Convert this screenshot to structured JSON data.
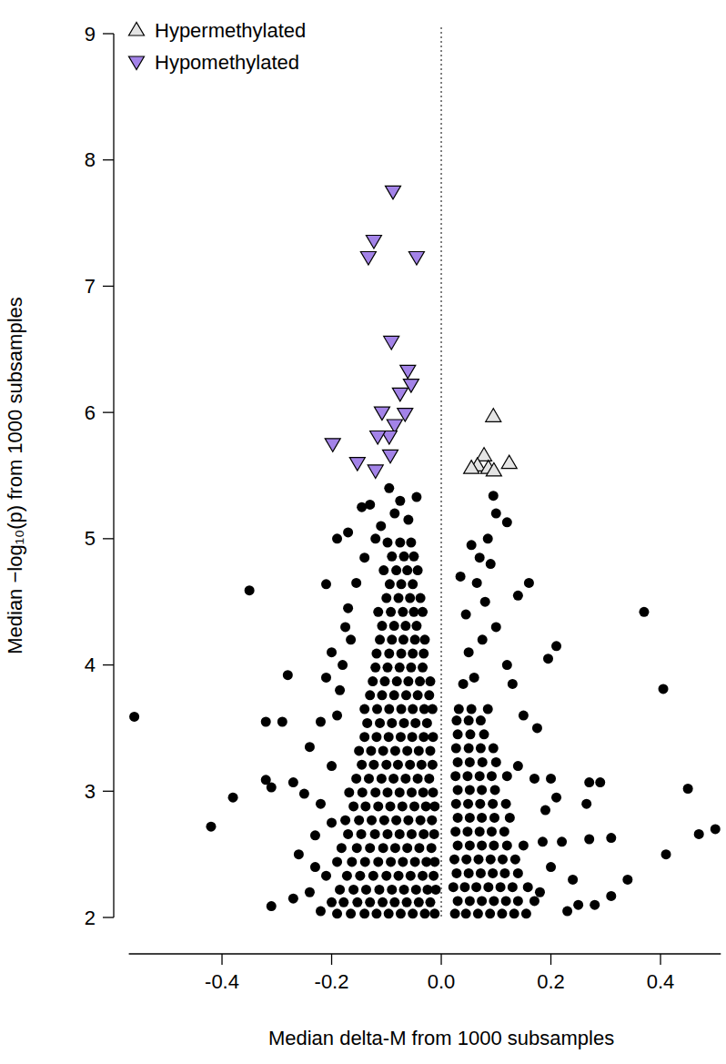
{
  "chart_data": {
    "type": "scatter",
    "x_label": "Median delta-M from 1000 subsamples",
    "y_label": "Median −log₁₀(p) from 1000 subsamples",
    "xlim": [
      -0.57,
      0.51
    ],
    "ylim": [
      2,
      9
    ],
    "xticks": [
      -0.4,
      -0.2,
      {
        "value": 0,
        "label": "0.0"
      },
      0.2,
      0.4
    ],
    "yticks": [
      2,
      3,
      4,
      5,
      6,
      7,
      8,
      9
    ],
    "vlines": [
      0
    ],
    "legend": "top-left",
    "series": [
      {
        "color": "#000000",
        "marker": "circle",
        "x": [
          -0.19,
          -0.165,
          -0.14,
          -0.118,
          -0.096,
          -0.074,
          -0.052,
          -0.03,
          -0.012,
          -0.2,
          -0.178,
          -0.153,
          -0.13,
          -0.107,
          -0.085,
          -0.063,
          -0.041,
          -0.02,
          -0.185,
          -0.16,
          -0.137,
          -0.113,
          -0.09,
          -0.068,
          -0.046,
          -0.025,
          -0.01,
          -0.21,
          -0.172,
          -0.148,
          -0.124,
          -0.1,
          -0.078,
          -0.056,
          -0.034,
          -0.014,
          -0.19,
          -0.163,
          -0.139,
          -0.115,
          -0.092,
          -0.07,
          -0.048,
          -0.027,
          -0.012,
          -0.182,
          -0.154,
          -0.13,
          -0.106,
          -0.084,
          -0.062,
          -0.04,
          -0.018,
          -0.17,
          -0.146,
          -0.121,
          -0.098,
          -0.076,
          -0.054,
          -0.032,
          -0.013,
          -0.175,
          -0.15,
          -0.127,
          -0.104,
          -0.082,
          -0.06,
          -0.038,
          -0.017,
          -0.16,
          -0.138,
          -0.115,
          -0.093,
          -0.071,
          -0.049,
          -0.028,
          -0.012,
          -0.168,
          -0.144,
          -0.12,
          -0.098,
          -0.076,
          -0.054,
          -0.033,
          -0.015,
          -0.155,
          -0.132,
          -0.109,
          -0.087,
          -0.065,
          -0.043,
          -0.022,
          -0.145,
          -0.123,
          -0.1,
          -0.079,
          -0.057,
          -0.036,
          -0.016,
          -0.15,
          -0.128,
          -0.106,
          -0.084,
          -0.062,
          -0.041,
          -0.02,
          -0.14,
          -0.118,
          -0.096,
          -0.074,
          -0.053,
          -0.032,
          -0.015,
          -0.135,
          -0.112,
          -0.09,
          -0.068,
          -0.047,
          -0.026,
          -0.14,
          -0.117,
          -0.095,
          -0.073,
          -0.052,
          -0.031,
          -0.016,
          -0.13,
          -0.108,
          -0.086,
          -0.064,
          -0.043,
          -0.022,
          -0.125,
          -0.103,
          -0.081,
          -0.06,
          -0.039,
          -0.02,
          -0.12,
          -0.098,
          -0.076,
          -0.055,
          -0.034,
          -0.118,
          -0.095,
          -0.073,
          -0.052,
          -0.032,
          -0.112,
          -0.09,
          -0.069,
          -0.048,
          -0.03,
          -0.108,
          -0.086,
          -0.065,
          -0.045,
          -0.115,
          -0.092,
          -0.07,
          -0.05,
          -0.034,
          -0.1,
          -0.078,
          -0.057,
          -0.038,
          -0.094,
          -0.073,
          -0.052,
          -0.105,
          -0.082,
          -0.062,
          -0.043,
          -0.09,
          -0.068,
          -0.05,
          -0.098,
          -0.075,
          -0.055,
          0.025,
          0.045,
          0.067,
          0.089,
          0.111,
          0.133,
          0.155,
          0.03,
          0.052,
          0.074,
          0.096,
          0.118,
          0.14,
          0.17,
          0.022,
          0.043,
          0.064,
          0.086,
          0.108,
          0.13,
          0.158,
          0.028,
          0.05,
          0.072,
          0.094,
          0.116,
          0.14,
          0.024,
          0.046,
          0.068,
          0.09,
          0.112,
          0.135,
          0.03,
          0.052,
          0.074,
          0.096,
          0.12,
          0.15,
          0.026,
          0.048,
          0.07,
          0.092,
          0.115,
          0.03,
          0.052,
          0.074,
          0.097,
          0.125,
          0.027,
          0.049,
          0.071,
          0.094,
          0.118,
          0.03,
          0.052,
          0.074,
          0.098,
          0.026,
          0.048,
          0.07,
          0.092,
          0.12,
          0.03,
          0.052,
          0.075,
          0.1,
          0.027,
          0.05,
          0.072,
          0.095,
          0.03,
          0.053,
          0.078,
          0.028,
          0.05,
          0.072,
          0.032,
          0.055,
          0.085,
          -0.11,
          -0.085,
          -0.06,
          -0.13,
          -0.095,
          -0.075,
          -0.045,
          -0.145,
          -0.12,
          -0.14,
          -0.155,
          -0.17,
          -0.165,
          -0.18,
          -0.185,
          -0.56,
          -0.42,
          -0.38,
          -0.35,
          -0.32,
          -0.29,
          -0.28,
          -0.32,
          -0.31,
          -0.31,
          -0.27,
          -0.25,
          -0.23,
          -0.27,
          -0.24,
          -0.22,
          -0.21,
          -0.2,
          -0.21,
          -0.23,
          -0.22,
          -0.26,
          -0.24,
          -0.2,
          -0.19,
          -0.17,
          -0.2,
          -0.22,
          -0.19,
          -0.175,
          0.04,
          0.06,
          0.05,
          0.075,
          0.045,
          0.08,
          0.065,
          0.09,
          0.055,
          0.1,
          0.095,
          0.085,
          0.12,
          0.035,
          0.07,
          0.1,
          0.12,
          0.13,
          0.14,
          0.15,
          0.16,
          0.175,
          0.14,
          0.17,
          0.19,
          0.2,
          0.21,
          0.195,
          0.21,
          0.22,
          0.24,
          0.25,
          0.27,
          0.29,
          0.265,
          0.31,
          0.31,
          0.27,
          0.34,
          0.37,
          0.405,
          0.45,
          0.41,
          0.47,
          0.5,
          0.28,
          0.23,
          0.2,
          0.18,
          0.185
        ],
        "values": [
          2.03,
          2.03,
          2.03,
          2.03,
          2.03,
          2.03,
          2.03,
          2.03,
          2.03,
          2.12,
          2.12,
          2.12,
          2.12,
          2.12,
          2.12,
          2.12,
          2.12,
          2.12,
          2.22,
          2.22,
          2.22,
          2.22,
          2.22,
          2.22,
          2.22,
          2.22,
          2.22,
          2.33,
          2.33,
          2.33,
          2.33,
          2.33,
          2.33,
          2.33,
          2.33,
          2.33,
          2.44,
          2.44,
          2.44,
          2.44,
          2.44,
          2.44,
          2.44,
          2.44,
          2.44,
          2.55,
          2.55,
          2.55,
          2.55,
          2.55,
          2.55,
          2.55,
          2.55,
          2.66,
          2.66,
          2.66,
          2.66,
          2.66,
          2.66,
          2.66,
          2.66,
          2.77,
          2.77,
          2.77,
          2.77,
          2.77,
          2.77,
          2.77,
          2.77,
          2.88,
          2.88,
          2.88,
          2.88,
          2.88,
          2.88,
          2.88,
          2.88,
          2.99,
          2.99,
          2.99,
          2.99,
          2.99,
          2.99,
          2.99,
          2.99,
          3.1,
          3.1,
          3.1,
          3.1,
          3.1,
          3.1,
          3.1,
          3.21,
          3.21,
          3.21,
          3.21,
          3.21,
          3.21,
          3.21,
          3.32,
          3.32,
          3.32,
          3.32,
          3.32,
          3.32,
          3.32,
          3.43,
          3.43,
          3.43,
          3.43,
          3.43,
          3.43,
          3.43,
          3.54,
          3.54,
          3.54,
          3.54,
          3.54,
          3.54,
          3.65,
          3.65,
          3.65,
          3.65,
          3.65,
          3.65,
          3.65,
          3.76,
          3.76,
          3.76,
          3.76,
          3.76,
          3.76,
          3.87,
          3.87,
          3.87,
          3.87,
          3.87,
          3.87,
          3.98,
          3.98,
          3.98,
          3.98,
          3.98,
          4.09,
          4.09,
          4.09,
          4.09,
          4.09,
          4.2,
          4.2,
          4.2,
          4.2,
          4.2,
          4.31,
          4.31,
          4.31,
          4.31,
          4.42,
          4.42,
          4.42,
          4.42,
          4.42,
          4.53,
          4.53,
          4.53,
          4.53,
          4.64,
          4.64,
          4.64,
          4.75,
          4.75,
          4.75,
          4.75,
          4.86,
          4.86,
          4.86,
          4.97,
          4.97,
          4.97,
          2.03,
          2.03,
          2.03,
          2.03,
          2.03,
          2.03,
          2.03,
          2.13,
          2.13,
          2.13,
          2.13,
          2.13,
          2.13,
          2.13,
          2.24,
          2.24,
          2.24,
          2.24,
          2.24,
          2.24,
          2.24,
          2.35,
          2.35,
          2.35,
          2.35,
          2.35,
          2.35,
          2.46,
          2.46,
          2.46,
          2.46,
          2.46,
          2.46,
          2.57,
          2.57,
          2.57,
          2.57,
          2.57,
          2.57,
          2.68,
          2.68,
          2.68,
          2.68,
          2.68,
          2.79,
          2.79,
          2.79,
          2.79,
          2.79,
          2.9,
          2.9,
          2.9,
          2.9,
          2.9,
          3.01,
          3.01,
          3.01,
          3.01,
          3.12,
          3.12,
          3.12,
          3.12,
          3.12,
          3.23,
          3.23,
          3.23,
          3.23,
          3.34,
          3.34,
          3.34,
          3.34,
          3.45,
          3.45,
          3.45,
          3.56,
          3.56,
          3.56,
          3.65,
          3.65,
          3.65,
          5.1,
          5.2,
          5.15,
          5.27,
          5.4,
          5.3,
          5.33,
          5.25,
          5.0,
          4.85,
          4.65,
          4.45,
          4.2,
          4.0,
          3.8,
          3.59,
          2.72,
          2.95,
          4.59,
          3.55,
          3.55,
          3.92,
          3.09,
          3.03,
          2.09,
          3.07,
          2.98,
          2.65,
          2.15,
          3.35,
          3.55,
          4.64,
          4.1,
          3.9,
          2.4,
          2.9,
          2.5,
          2.2,
          3.2,
          5.0,
          5.05,
          2.75,
          2.05,
          3.6,
          4.3,
          3.85,
          3.9,
          4.1,
          4.2,
          4.4,
          4.5,
          4.65,
          4.8,
          4.95,
          5.2,
          5.34,
          5.0,
          5.13,
          4.7,
          4.85,
          4.3,
          4.0,
          3.85,
          4.55,
          3.6,
          4.65,
          3.5,
          3.2,
          3.1,
          2.85,
          3.1,
          4.15,
          4.05,
          2.95,
          2.6,
          2.3,
          2.1,
          3.07,
          3.07,
          2.9,
          2.63,
          2.17,
          2.62,
          2.3,
          4.42,
          3.81,
          3.02,
          2.5,
          2.66,
          2.7,
          2.1,
          2.05,
          2.4,
          2.2,
          2.6
        ]
      },
      {
        "name": "Hypermethylated",
        "color": "#e4e4e4",
        "marker": "triangle-up",
        "x": [
          0.095,
          0.078,
          0.066,
          0.086,
          0.124,
          0.055,
          0.096
        ],
        "values": [
          5.97,
          5.66,
          5.58,
          5.56,
          5.6,
          5.56,
          5.54
        ]
      },
      {
        "name": "Hypomethylated",
        "color": "#a383e8",
        "marker": "triangle-down",
        "x": [
          -0.088,
          -0.123,
          -0.133,
          -0.045,
          -0.091,
          -0.061,
          -0.055,
          -0.075,
          -0.108,
          -0.066,
          -0.085,
          -0.095,
          -0.116,
          -0.198,
          -0.153,
          -0.093,
          -0.12
        ],
        "values": [
          7.75,
          7.36,
          7.23,
          7.23,
          6.56,
          6.33,
          6.22,
          6.15,
          6.0,
          5.99,
          5.9,
          5.81,
          5.81,
          5.75,
          5.6,
          5.66,
          5.54
        ]
      }
    ]
  }
}
